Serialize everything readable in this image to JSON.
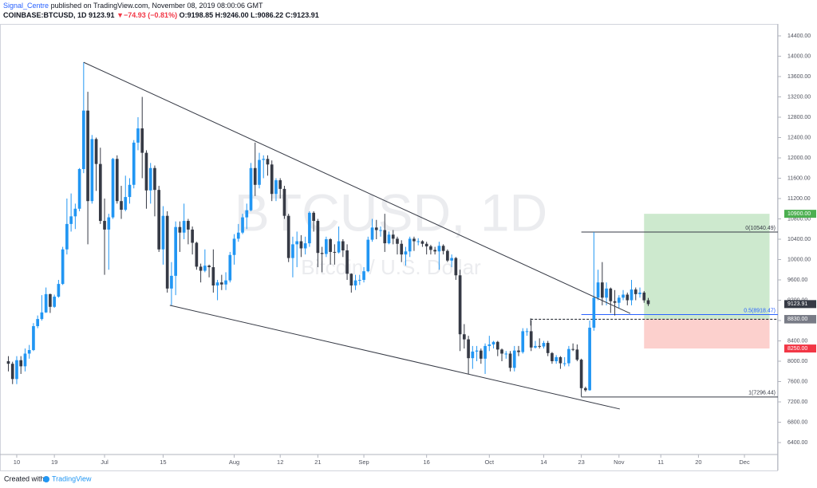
{
  "header": {
    "author": "Signal_Centre",
    "published": "published on TradingView.com, November 08, 2019 08:00:06 GMT",
    "symbol": "COINBASE:BTCUSD, 1D",
    "last": "9123.91",
    "arrow": "▼",
    "change": "−74.93 (−0.81%)",
    "ohlc": "O:9198.85 H:9246.00 L:9086.22 C:9123.91"
  },
  "footer": {
    "created": "Created with",
    "brand": "TradingView"
  },
  "chart_data": {
    "type": "candlestick",
    "watermark": "BTCUSD, 1D",
    "watermark_sub": "Bitcoin / U.S. Dollar",
    "up_color": "#2196f3",
    "down_color": "#363a45",
    "xlim": [
      -2,
      184
    ],
    "ylim": [
      6165,
      14635
    ],
    "xticks": [
      {
        "value": 2,
        "label": "10"
      },
      {
        "value": 11,
        "label": "19"
      },
      {
        "value": 23,
        "label": "Jul"
      },
      {
        "value": 37,
        "label": "15"
      },
      {
        "value": 54,
        "label": "Aug"
      },
      {
        "value": 65,
        "label": "12"
      },
      {
        "value": 74,
        "label": "21"
      },
      {
        "value": 85,
        "label": "Sep"
      },
      {
        "value": 100,
        "label": "16"
      },
      {
        "value": 115,
        "label": "Oct"
      },
      {
        "value": 128,
        "label": "14"
      },
      {
        "value": 137,
        "label": "23"
      },
      {
        "value": 146,
        "label": "Nov"
      },
      {
        "value": 156,
        "label": "11"
      },
      {
        "value": 165,
        "label": "20"
      },
      {
        "value": 176,
        "label": "Dec"
      }
    ],
    "yticks": [
      {
        "value": 6400,
        "label": "6400.00"
      },
      {
        "value": 6800,
        "label": "6800.00"
      },
      {
        "value": 7200,
        "label": "7200.00"
      },
      {
        "value": 7600,
        "label": "7600.00"
      },
      {
        "value": 8000,
        "label": "8000.00"
      },
      {
        "value": 8400,
        "label": "8400.00"
      },
      {
        "value": 8800,
        "label": "8800.00"
      },
      {
        "value": 9200,
        "label": "9200.00"
      },
      {
        "value": 9600,
        "label": "9600.00"
      },
      {
        "value": 10000,
        "label": "10000.00"
      },
      {
        "value": 10400,
        "label": "10400.00"
      },
      {
        "value": 10800,
        "label": "10800.00"
      },
      {
        "value": 11200,
        "label": "11200.00"
      },
      {
        "value": 11600,
        "label": "11600.00"
      },
      {
        "value": 12000,
        "label": "12000.00"
      },
      {
        "value": 12400,
        "label": "12400.00"
      },
      {
        "value": 12800,
        "label": "12800.00"
      },
      {
        "value": 13200,
        "label": "13200.00"
      },
      {
        "value": 13600,
        "label": "13600.00"
      },
      {
        "value": 14000,
        "label": "14000.00"
      },
      {
        "value": 14400,
        "label": "14400.00"
      }
    ],
    "open": [
      8000,
      7950,
      7650,
      8020,
      7900,
      8150,
      8220,
      8690,
      8830,
      8960,
      9320,
      9070,
      9270,
      9520,
      10200,
      10700,
      10850,
      11000,
      11780,
      12930,
      11150,
      12370,
      11880,
      10760,
      10590,
      10830,
      11980,
      11150,
      10980,
      11230,
      11470,
      12300,
      12580,
      12100,
      11360,
      11800,
      11370,
      10200,
      10860,
      9430,
      9680,
      10640,
      10530,
      10760,
      10590,
      10330,
      9860,
      9780,
      9880,
      9850,
      9490,
      9550,
      9510,
      9590,
      10090,
      10410,
      10530,
      10830,
      10970,
      11800,
      11470,
      11960,
      11980,
      11870,
      11290,
      11560,
      11390,
      10860,
      10030,
      10300,
      10360,
      10220,
      10320,
      10920,
      10760,
      10130,
      10110,
      10400,
      10150,
      10140,
      10360,
      10180,
      9720,
      9490,
      9590,
      9600,
      9770,
      10390,
      10630,
      10580,
      10580,
      10320,
      10490,
      10410,
      10310,
      10100,
      10160,
      10410,
      10360,
      10360,
      10310,
      10260,
      10190,
      10160,
      10270,
      10170,
      9980,
      10030,
      9690,
      8530,
      8430,
      8060,
      8190,
      8210,
      8050,
      8300,
      8330,
      8380,
      8230,
      8150,
      8150,
      7870,
      8210,
      8180,
      8590,
      8590,
      8270,
      8300,
      8290,
      8360,
      8160,
      8000,
      8080,
      7960,
      7960,
      8240,
      8230,
      8030,
      7470,
      7430,
      8660,
      9250,
      9550,
      9250,
      9430,
      9180,
      9150,
      9250,
      9310,
      9200,
      9410,
      9320,
      9350,
      9198.85
    ],
    "high": [
      8100,
      7990,
      8100,
      8100,
      8250,
      8320,
      8750,
      8900,
      9300,
      9450,
      9330,
      9310,
      9600,
      10250,
      11200,
      11300,
      11100,
      11800,
      13880,
      13300,
      12450,
      12400,
      12200,
      11200,
      10900,
      12000,
      12050,
      11450,
      11650,
      11600,
      12350,
      12800,
      13200,
      12150,
      11900,
      11850,
      11450,
      11050,
      10950,
      9950,
      10750,
      10750,
      11100,
      10800,
      10650,
      10350,
      9920,
      10200,
      9900,
      10200,
      9600,
      9700,
      9750,
      10150,
      10500,
      10700,
      10900,
      11100,
      11900,
      12300,
      12100,
      12050,
      12050,
      11950,
      11600,
      11600,
      11450,
      10900,
      10450,
      10550,
      10480,
      10450,
      10950,
      10950,
      10800,
      10250,
      10450,
      10420,
      10300,
      10650,
      10400,
      10300,
      9730,
      9700,
      9700,
      9850,
      10450,
      10800,
      10780,
      10650,
      10900,
      10550,
      10580,
      10450,
      10380,
      10250,
      10450,
      10450,
      10420,
      10380,
      10350,
      10290,
      10250,
      10350,
      10300,
      10200,
      10100,
      10050,
      9800,
      8730,
      8500,
      8300,
      8300,
      8250,
      8350,
      8500,
      8400,
      8400,
      8250,
      8200,
      8200,
      8300,
      8300,
      8650,
      8650,
      8800,
      8400,
      8450,
      8400,
      8400,
      8180,
      8120,
      8100,
      8080,
      8300,
      8350,
      8330,
      8050,
      7500,
      8800,
      10540,
      9800,
      9950,
      9550,
      9450,
      9400,
      9300,
      9400,
      9350,
      9600,
      9450,
      9450,
      9380,
      9246
    ],
    "low": [
      7800,
      7550,
      7550,
      7750,
      7800,
      8050,
      8200,
      8650,
      8800,
      8950,
      8950,
      9050,
      9250,
      9500,
      10100,
      10550,
      10600,
      10950,
      11700,
      10300,
      11100,
      11350,
      10700,
      9700,
      9800,
      10800,
      11100,
      10800,
      10950,
      11100,
      11400,
      12150,
      11600,
      11000,
      11100,
      10850,
      10150,
      9900,
      9350,
      9100,
      9300,
      10150,
      10400,
      10300,
      10100,
      9800,
      9550,
      9750,
      9650,
      9350,
      9200,
      9400,
      9400,
      9550,
      9900,
      10350,
      10500,
      10600,
      10950,
      11250,
      11400,
      11600,
      11650,
      11150,
      11150,
      11200,
      10800,
      9950,
      9650,
      9850,
      10050,
      10100,
      10250,
      10550,
      9850,
      9750,
      10050,
      9900,
      9900,
      10120,
      10050,
      9600,
      9350,
      9400,
      9500,
      9550,
      9750,
      10350,
      10400,
      10450,
      10150,
      10300,
      10300,
      10100,
      9950,
      9880,
      10050,
      10170,
      10280,
      10250,
      10100,
      10100,
      10100,
      9800,
      10100,
      9950,
      9850,
      9600,
      8200,
      8250,
      7750,
      7850,
      8000,
      7950,
      7750,
      8200,
      8250,
      8100,
      8000,
      8050,
      7800,
      7800,
      8100,
      8150,
      8500,
      8200,
      8250,
      8250,
      8250,
      8100,
      7950,
      7950,
      7850,
      7900,
      7900,
      8200,
      8000,
      7300,
      7400,
      7420,
      8600,
      9200,
      9100,
      9100,
      8950,
      8900,
      9050,
      9200,
      9100,
      9100,
      9200,
      9250,
      9150,
      9086.22
    ],
    "close": [
      7950,
      7650,
      8020,
      7900,
      8150,
      8220,
      8690,
      8830,
      8960,
      9320,
      9070,
      9270,
      9520,
      10200,
      10700,
      10850,
      11000,
      11780,
      12930,
      11150,
      12370,
      11880,
      10760,
      10590,
      10830,
      11980,
      11150,
      10980,
      11230,
      11470,
      12300,
      12580,
      12100,
      11360,
      11800,
      11370,
      10200,
      10860,
      9430,
      9680,
      10640,
      10530,
      10760,
      10590,
      10330,
      9860,
      9780,
      9880,
      9850,
      9490,
      9550,
      9510,
      9590,
      10090,
      10410,
      10530,
      10830,
      10970,
      11800,
      11470,
      11960,
      11980,
      11870,
      11290,
      11560,
      11390,
      10860,
      10030,
      10300,
      10360,
      10220,
      10320,
      10920,
      10760,
      10130,
      10110,
      10400,
      10150,
      10140,
      10360,
      10180,
      9720,
      9490,
      9590,
      9600,
      9770,
      10390,
      10630,
      10580,
      10580,
      10320,
      10490,
      10410,
      10310,
      10100,
      10160,
      10410,
      10360,
      10360,
      10310,
      10260,
      10190,
      10160,
      10270,
      10170,
      9980,
      10030,
      9690,
      8530,
      8430,
      8060,
      8190,
      8210,
      8050,
      8300,
      8330,
      8380,
      8230,
      8150,
      8150,
      7870,
      8210,
      8180,
      8590,
      8590,
      8270,
      8300,
      8290,
      8360,
      8160,
      8000,
      8080,
      7960,
      7960,
      8240,
      8230,
      8030,
      7470,
      7430,
      8660,
      9250,
      9550,
      9250,
      9430,
      9180,
      9150,
      9250,
      9310,
      9200,
      9410,
      9320,
      9350,
      9198.84,
      9123.91
    ],
    "trendlines": [
      {
        "x": [
          18,
          148.7
        ],
        "y": [
          13880,
          8940
        ]
      },
      {
        "x": [
          38.6,
          146.2
        ],
        "y": [
          9100,
          7060
        ]
      }
    ],
    "fib": {
      "x_start": 137,
      "levels": [
        {
          "price": 10540.49,
          "label": "0(10540.49)",
          "color": "#363a45"
        },
        {
          "price": 8918.47,
          "label": "0.5(8918.47)",
          "color": "#2962ff"
        },
        {
          "price": 7296.44,
          "label": "1(7296.44)",
          "color": "#363a45"
        }
      ]
    },
    "dashed_level": {
      "x_start": 124.9,
      "price": 8826
    },
    "boxes": [
      {
        "x": [
          152,
          182
        ],
        "y": [
          8830,
          10900
        ],
        "color": "rgba(76,175,80,0.28)"
      },
      {
        "x": [
          152,
          182
        ],
        "y": [
          8250,
          8830
        ],
        "color": "rgba(244,67,54,0.25)"
      }
    ],
    "price_tags": [
      {
        "value": 10900,
        "label": "10900.00",
        "color": "#4caf50"
      },
      {
        "value": 9123.91,
        "label": "9123.91",
        "color": "#363a45"
      },
      {
        "value": 8826,
        "label": "8826.00",
        "color": "#131722"
      },
      {
        "value": 8830,
        "label": "8830.00",
        "color": "#787b86"
      },
      {
        "value": 8250,
        "label": "8250.00",
        "color": "#f23645"
      }
    ]
  }
}
